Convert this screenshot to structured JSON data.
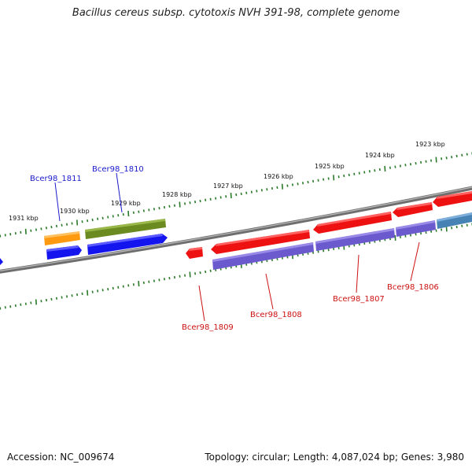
{
  "title": "Bacillus cereus subsp. cytotoxis NVH 391-98, complete genome",
  "footer": {
    "accession": "Accession: NC_009674",
    "summary": "Topology: circular; Length: 4,087,024 bp; Genes: 3,980"
  },
  "ruler_labels": [
    "1931 kbp",
    "1930 kbp",
    "1929 kbp",
    "1928 kbp",
    "1927 kbp",
    "1926 kbp",
    "1925 kbp",
    "1924 kbp",
    "1923 kbp"
  ],
  "gene_labels": {
    "top": [
      "Bcer98_1811",
      "Bcer98_1810"
    ],
    "bottom": [
      "Bcer98_1809",
      "Bcer98_1808",
      "Bcer98_1807",
      "Bcer98_1806"
    ]
  },
  "colors": {
    "backbone": "#808080",
    "tick": "#2a7a2a",
    "forward_label": "#1a1acc",
    "reverse_label": "#cc1111",
    "orange": "#ff9910",
    "olive": "#6b8a20",
    "blue": "#1414ee",
    "red": "#ee1111",
    "purple": "#6a5acd",
    "steelblue": "#4682b4"
  }
}
